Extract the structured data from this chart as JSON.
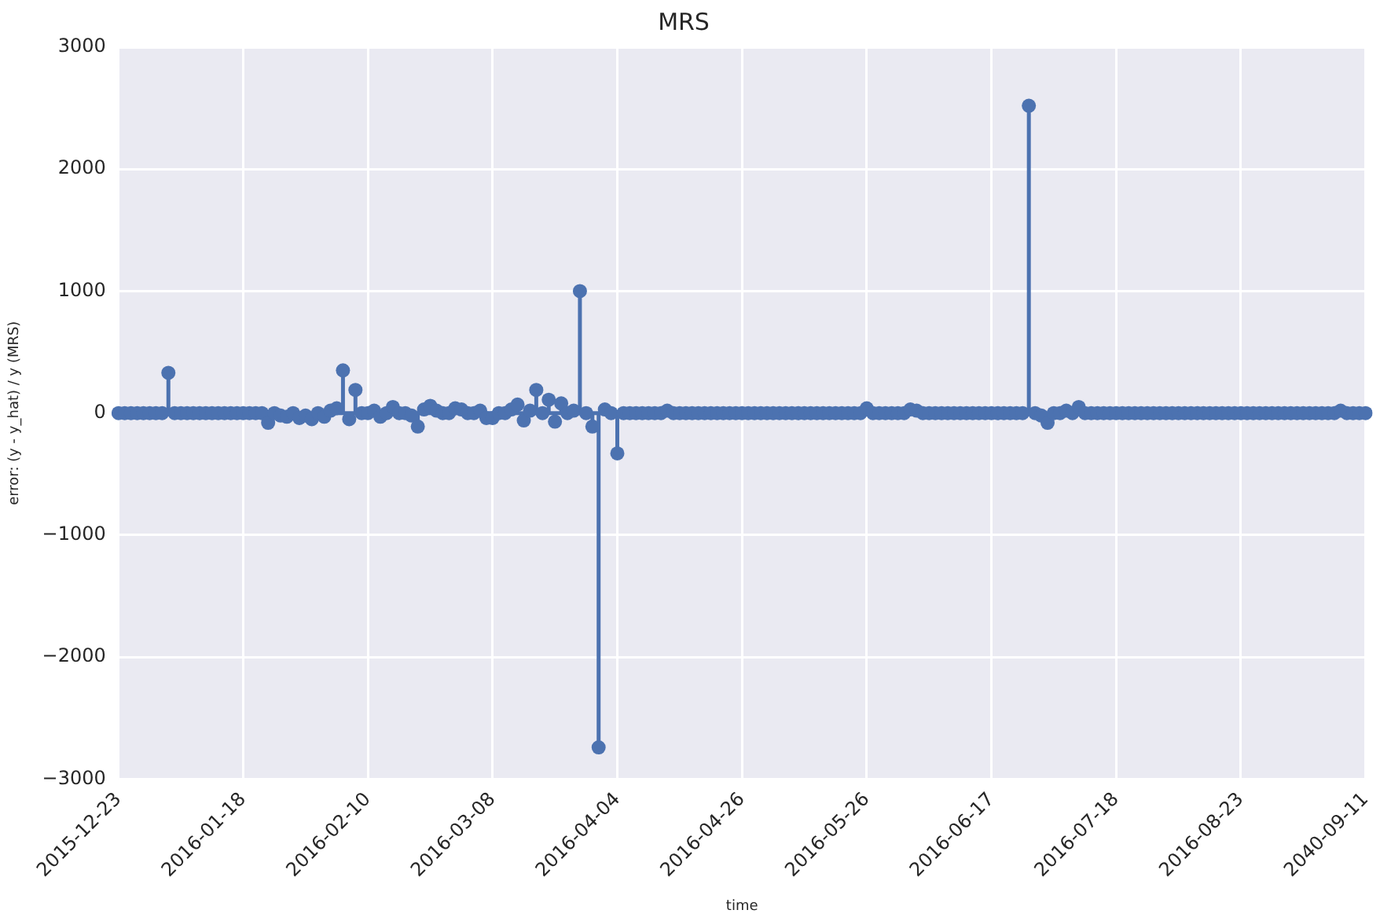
{
  "chart_data": {
    "type": "lollipop",
    "title": "MRS",
    "xlabel": "time",
    "ylabel": "error: (y - y_hat) / y (MRS)",
    "categories": [
      "2015-12-23",
      null,
      null,
      null,
      null,
      null,
      null,
      null,
      null,
      null,
      null,
      null,
      null,
      null,
      null,
      null,
      null,
      null,
      null,
      null,
      "2016-01-18",
      null,
      null,
      null,
      null,
      null,
      null,
      null,
      null,
      null,
      null,
      null,
      null,
      null,
      null,
      null,
      null,
      null,
      null,
      null,
      "2016-02-10",
      null,
      null,
      null,
      null,
      null,
      null,
      null,
      null,
      null,
      null,
      null,
      null,
      null,
      null,
      null,
      null,
      null,
      null,
      null,
      "2016-03-08",
      null,
      null,
      null,
      null,
      null,
      null,
      null,
      null,
      null,
      null,
      null,
      null,
      null,
      null,
      null,
      null,
      null,
      null,
      null,
      "2016-04-04",
      null,
      null,
      null,
      null,
      null,
      null,
      null,
      null,
      null,
      null,
      null,
      null,
      null,
      null,
      null,
      null,
      null,
      null,
      null,
      "2016-04-26",
      null,
      null,
      null,
      null,
      null,
      null,
      null,
      null,
      null,
      null,
      null,
      null,
      null,
      null,
      null,
      null,
      null,
      null,
      null,
      "2016-05-26",
      null,
      null,
      null,
      null,
      null,
      null,
      null,
      null,
      null,
      null,
      null,
      null,
      null,
      null,
      null,
      null,
      null,
      null,
      null,
      "2016-06-17",
      null,
      null,
      null,
      null,
      null,
      null,
      null,
      null,
      null,
      null,
      null,
      null,
      null,
      null,
      null,
      null,
      null,
      null,
      null,
      "2016-07-18",
      null,
      null,
      null,
      null,
      null,
      null,
      null,
      null,
      null,
      null,
      null,
      null,
      null,
      null,
      null,
      null,
      null,
      null,
      null,
      "2016-08-23",
      null,
      null,
      null,
      null,
      null,
      null,
      null,
      null,
      null,
      null,
      null,
      null,
      null,
      null,
      null,
      null,
      null,
      null,
      null,
      "2040-09-11"
    ],
    "values": [
      0,
      0,
      0,
      0,
      0,
      0,
      0,
      0,
      330,
      0,
      0,
      0,
      0,
      0,
      0,
      0,
      0,
      0,
      0,
      0,
      0,
      0,
      0,
      0,
      -80,
      0,
      -20,
      -30,
      0,
      -40,
      -20,
      -50,
      0,
      -30,
      20,
      40,
      350,
      -50,
      190,
      0,
      0,
      20,
      -30,
      0,
      50,
      0,
      0,
      -20,
      -110,
      30,
      60,
      20,
      0,
      0,
      40,
      30,
      0,
      0,
      20,
      -40,
      -40,
      0,
      0,
      30,
      70,
      -60,
      20,
      190,
      0,
      110,
      -70,
      80,
      0,
      20,
      1000,
      0,
      -110,
      -2740,
      30,
      0,
      -330,
      0,
      0,
      0,
      0,
      0,
      0,
      0,
      20,
      0,
      0,
      0,
      0,
      0,
      0,
      0,
      0,
      0,
      0,
      0,
      0,
      0,
      0,
      0,
      0,
      0,
      0,
      0,
      0,
      0,
      0,
      0,
      0,
      0,
      0,
      0,
      0,
      0,
      0,
      0,
      40,
      0,
      0,
      0,
      0,
      0,
      0,
      30,
      20,
      0,
      0,
      0,
      0,
      0,
      0,
      0,
      0,
      0,
      0,
      0,
      0,
      0,
      0,
      0,
      0,
      0,
      2520,
      0,
      -20,
      -80,
      0,
      0,
      20,
      0,
      50,
      0,
      0,
      0,
      0,
      0,
      0,
      0,
      0,
      0,
      0,
      0,
      0,
      0,
      0,
      0,
      0,
      0,
      0,
      0,
      0,
      0,
      0,
      0,
      0,
      0,
      0,
      0,
      0,
      0,
      0,
      0,
      0,
      0,
      0,
      0,
      0,
      0,
      0,
      0,
      0,
      0,
      20,
      0,
      0,
      0,
      0
    ],
    "ref_lines": [
      {
        "axis": "y",
        "value": 0,
        "color": "#4c72b0"
      }
    ],
    "color": "#4c72b0",
    "marker": "circle",
    "ylim": [
      -3000,
      3000
    ],
    "yticks": [
      -3000,
      -2000,
      -1000,
      0,
      1000,
      2000,
      3000
    ],
    "grid": true
  }
}
